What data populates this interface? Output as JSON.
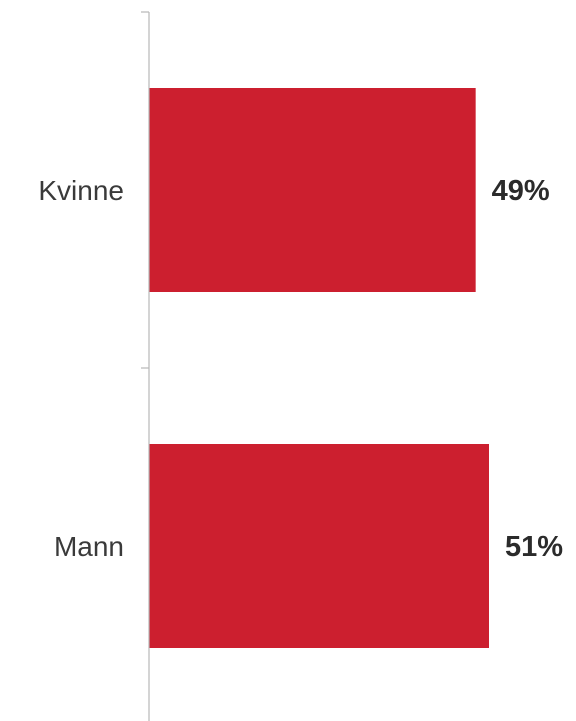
{
  "chart_data": {
    "type": "bar",
    "orientation": "horizontal",
    "categories": [
      "Kvinne",
      "Mann"
    ],
    "values": [
      49,
      51
    ],
    "value_labels": [
      "49%",
      "51%"
    ],
    "xlim": [
      0,
      60
    ],
    "title": "",
    "xlabel": "",
    "ylabel": "",
    "grid": false,
    "legend": "none",
    "bar_color": "#cc1f2f",
    "axis_color": "#b8b8b8"
  }
}
